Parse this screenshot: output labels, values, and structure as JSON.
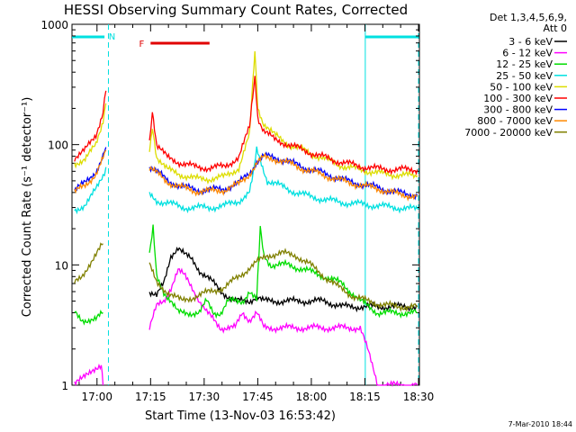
{
  "chart_data": {
    "type": "line",
    "title": "HESSI Observing Summary Count Rates, Corrected",
    "xlabel": "Start Time (13-Nov-03 16:53:42)",
    "ylabel": "Corrected Count Rate (s⁻¹ detector⁻¹)",
    "yscale": "log",
    "ylim": [
      1,
      1000
    ],
    "xlim_minutes": [
      -0.7,
      96.55
    ],
    "x_unit": "minutes after 16:53:42",
    "xticks": [
      {
        "label": "17:00",
        "t": 6.3
      },
      {
        "label": "17:15",
        "t": 21.3
      },
      {
        "label": "17:30",
        "t": 36.3
      },
      {
        "label": "17:45",
        "t": 51.3
      },
      {
        "label": "18:00",
        "t": 66.3
      },
      {
        "label": "18:15",
        "t": 81.3
      },
      {
        "label": "18:30",
        "t": 96.3
      }
    ],
    "yticks": [
      1,
      10,
      100,
      1000
    ],
    "legend_header": [
      "Det 1,3,4,5,6,9,",
      "Att 0"
    ],
    "legend_position": "right",
    "status_bars": [
      {
        "label": "",
        "color": "#00e0e0",
        "t_start": -0.7,
        "t_end": 8.4
      },
      {
        "label": "N",
        "color": "#00e0e0",
        "t_start": 10.5,
        "t_end": 10.5
      },
      {
        "label": "F",
        "color": "#e00000",
        "t_start": 21.3,
        "t_end": 37.8
      },
      {
        "label": "",
        "color": "#00e0e0",
        "t_start": 81.4,
        "t_end": 96.3
      }
    ],
    "boundaries": [
      {
        "t": 9.5,
        "style": "dashed"
      },
      {
        "t": 81.4,
        "style": "solid"
      },
      {
        "t": 96.3,
        "style": "dashed"
      }
    ],
    "data_gap": [
      9.5,
      20.5
    ],
    "series": [
      {
        "name": "3 - 6 keV",
        "color": "#000000",
        "points": [
          [
            21,
            6
          ],
          [
            23,
            5.5
          ],
          [
            25,
            7
          ],
          [
            27,
            12
          ],
          [
            29,
            14
          ],
          [
            31,
            12
          ],
          [
            33,
            11
          ],
          [
            35,
            9
          ],
          [
            37,
            8
          ],
          [
            39,
            7
          ],
          [
            41,
            6
          ],
          [
            43,
            5.5
          ],
          [
            45,
            5
          ],
          [
            47,
            5
          ],
          [
            49,
            5
          ],
          [
            51,
            5.5
          ],
          [
            53,
            5
          ],
          [
            55,
            5
          ],
          [
            60,
            5
          ],
          [
            65,
            5
          ],
          [
            70,
            5
          ],
          [
            75,
            4.5
          ],
          [
            80,
            4.5
          ],
          [
            85,
            4.5
          ],
          [
            90,
            4.5
          ],
          [
            96,
            4.5
          ]
        ]
      },
      {
        "name": "6 - 12 keV",
        "color": "#ff00ff",
        "points": [
          [
            0,
            1
          ],
          [
            7.5,
            1.5
          ],
          [
            8,
            1
          ],
          [
            21,
            3
          ],
          [
            23,
            4.5
          ],
          [
            25,
            5
          ],
          [
            27,
            6.5
          ],
          [
            29,
            9
          ],
          [
            31,
            8
          ],
          [
            33,
            6.5
          ],
          [
            35,
            5
          ],
          [
            37,
            4
          ],
          [
            39,
            3.5
          ],
          [
            41,
            3
          ],
          [
            43,
            3
          ],
          [
            45,
            3
          ],
          [
            47,
            4
          ],
          [
            49,
            3.5
          ],
          [
            51,
            4
          ],
          [
            53,
            3
          ],
          [
            55,
            3
          ],
          [
            60,
            3
          ],
          [
            65,
            3
          ],
          [
            70,
            3
          ],
          [
            75,
            3
          ],
          [
            80,
            3
          ],
          [
            82,
            2
          ],
          [
            85,
            1
          ],
          [
            90,
            1
          ],
          [
            96,
            1
          ]
        ]
      },
      {
        "name": "12 - 25 keV",
        "color": "#00dd00",
        "points": [
          [
            0,
            4
          ],
          [
            2,
            3.5
          ],
          [
            4,
            3.5
          ],
          [
            6,
            3.5
          ],
          [
            8,
            4
          ],
          [
            21,
            12
          ],
          [
            22,
            20
          ],
          [
            23,
            8
          ],
          [
            25,
            6
          ],
          [
            27,
            5
          ],
          [
            29,
            4
          ],
          [
            31,
            4
          ],
          [
            33,
            4
          ],
          [
            35,
            4
          ],
          [
            37,
            5
          ],
          [
            39,
            4
          ],
          [
            41,
            4
          ],
          [
            43,
            5
          ],
          [
            45,
            5
          ],
          [
            47,
            5
          ],
          [
            49,
            6
          ],
          [
            51,
            5
          ],
          [
            52,
            20
          ],
          [
            53,
            12
          ],
          [
            55,
            10
          ],
          [
            60,
            10
          ],
          [
            65,
            9
          ],
          [
            70,
            8
          ],
          [
            75,
            7
          ],
          [
            80,
            5
          ],
          [
            85,
            4
          ],
          [
            90,
            4
          ],
          [
            96,
            4
          ]
        ]
      },
      {
        "name": "25 - 50 keV",
        "color": "#00e0e0",
        "points": [
          [
            0,
            28
          ],
          [
            3,
            32
          ],
          [
            6,
            42
          ],
          [
            8,
            55
          ],
          [
            8.8,
            65
          ],
          [
            21,
            38
          ],
          [
            23,
            34
          ],
          [
            26,
            33
          ],
          [
            30,
            30
          ],
          [
            34,
            30
          ],
          [
            38,
            30
          ],
          [
            42,
            31
          ],
          [
            46,
            34
          ],
          [
            49,
            40
          ],
          [
            50,
            55
          ],
          [
            51,
            90
          ],
          [
            52,
            75
          ],
          [
            54,
            50
          ],
          [
            58,
            45
          ],
          [
            62,
            40
          ],
          [
            66,
            37
          ],
          [
            70,
            35
          ],
          [
            75,
            33
          ],
          [
            80,
            32
          ],
          [
            85,
            31
          ],
          [
            90,
            30
          ],
          [
            96,
            29
          ]
        ]
      },
      {
        "name": "50 - 100 keV",
        "color": "#dddd00",
        "points": [
          [
            0,
            70
          ],
          [
            3,
            75
          ],
          [
            6,
            100
          ],
          [
            8,
            160
          ],
          [
            8.8,
            220
          ],
          [
            21,
            90
          ],
          [
            21.8,
            140
          ],
          [
            23,
            80
          ],
          [
            26,
            62
          ],
          [
            30,
            56
          ],
          [
            34,
            52
          ],
          [
            38,
            52
          ],
          [
            42,
            54
          ],
          [
            46,
            64
          ],
          [
            49,
            120
          ],
          [
            50.5,
            600
          ],
          [
            51.3,
            200
          ],
          [
            53,
            150
          ],
          [
            56,
            120
          ],
          [
            60,
            100
          ],
          [
            64,
            90
          ],
          [
            68,
            80
          ],
          [
            72,
            72
          ],
          [
            76,
            65
          ],
          [
            80,
            62
          ],
          [
            85,
            58
          ],
          [
            90,
            56
          ],
          [
            96,
            55
          ]
        ]
      },
      {
        "name": "100 - 300 keV",
        "color": "#ff0000",
        "points": [
          [
            0,
            78
          ],
          [
            3,
            90
          ],
          [
            6,
            120
          ],
          [
            8,
            190
          ],
          [
            8.8,
            280
          ],
          [
            21,
            110
          ],
          [
            21.8,
            180
          ],
          [
            23,
            100
          ],
          [
            26,
            78
          ],
          [
            30,
            70
          ],
          [
            34,
            65
          ],
          [
            38,
            64
          ],
          [
            42,
            66
          ],
          [
            46,
            78
          ],
          [
            49,
            140
          ],
          [
            50.5,
            350
          ],
          [
            51.3,
            170
          ],
          [
            53,
            130
          ],
          [
            56,
            110
          ],
          [
            60,
            100
          ],
          [
            64,
            90
          ],
          [
            68,
            82
          ],
          [
            72,
            75
          ],
          [
            76,
            70
          ],
          [
            80,
            66
          ],
          [
            85,
            63
          ],
          [
            90,
            62
          ],
          [
            96,
            62
          ]
        ]
      },
      {
        "name": "300 - 800 keV",
        "color": "#0000ff",
        "points": [
          [
            0,
            42
          ],
          [
            3,
            48
          ],
          [
            6,
            60
          ],
          [
            8,
            80
          ],
          [
            8.8,
            95
          ],
          [
            21,
            66
          ],
          [
            23,
            60
          ],
          [
            26,
            50
          ],
          [
            30,
            45
          ],
          [
            34,
            42
          ],
          [
            38,
            42
          ],
          [
            42,
            43
          ],
          [
            46,
            48
          ],
          [
            49,
            58
          ],
          [
            51,
            72
          ],
          [
            53,
            80
          ],
          [
            56,
            78
          ],
          [
            60,
            72
          ],
          [
            64,
            65
          ],
          [
            68,
            60
          ],
          [
            72,
            55
          ],
          [
            76,
            50
          ],
          [
            80,
            47
          ],
          [
            85,
            44
          ],
          [
            90,
            40
          ],
          [
            96,
            38
          ]
        ]
      },
      {
        "name": "800 - 7000 keV",
        "color": "#ff8800",
        "points": [
          [
            0,
            40
          ],
          [
            3,
            46
          ],
          [
            6,
            57
          ],
          [
            8,
            76
          ],
          [
            8.8,
            90
          ],
          [
            21,
            64
          ],
          [
            23,
            58
          ],
          [
            26,
            49
          ],
          [
            30,
            44
          ],
          [
            34,
            41
          ],
          [
            38,
            41
          ],
          [
            42,
            42
          ],
          [
            46,
            47
          ],
          [
            49,
            57
          ],
          [
            51,
            70
          ],
          [
            53,
            78
          ],
          [
            56,
            76
          ],
          [
            60,
            70
          ],
          [
            64,
            63
          ],
          [
            68,
            58
          ],
          [
            72,
            53
          ],
          [
            76,
            49
          ],
          [
            80,
            46
          ],
          [
            85,
            43
          ],
          [
            90,
            39
          ],
          [
            96,
            37
          ]
        ]
      },
      {
        "name": "7000 - 20000 keV",
        "color": "#808000",
        "points": [
          [
            0,
            7
          ],
          [
            2,
            8
          ],
          [
            4,
            10
          ],
          [
            6,
            12
          ],
          [
            8,
            15
          ],
          [
            21,
            10
          ],
          [
            23,
            7
          ],
          [
            26,
            6
          ],
          [
            30,
            5
          ],
          [
            34,
            5.5
          ],
          [
            38,
            6
          ],
          [
            42,
            6.5
          ],
          [
            46,
            8
          ],
          [
            50,
            10
          ],
          [
            54,
            12
          ],
          [
            58,
            12.5
          ],
          [
            62,
            12
          ],
          [
            66,
            10
          ],
          [
            70,
            8
          ],
          [
            74,
            6.5
          ],
          [
            78,
            5.5
          ],
          [
            82,
            5
          ],
          [
            86,
            4.7
          ],
          [
            90,
            4.5
          ],
          [
            96,
            4.5
          ]
        ]
      }
    ],
    "footer_note": "7-Mar-2010 18:44"
  }
}
